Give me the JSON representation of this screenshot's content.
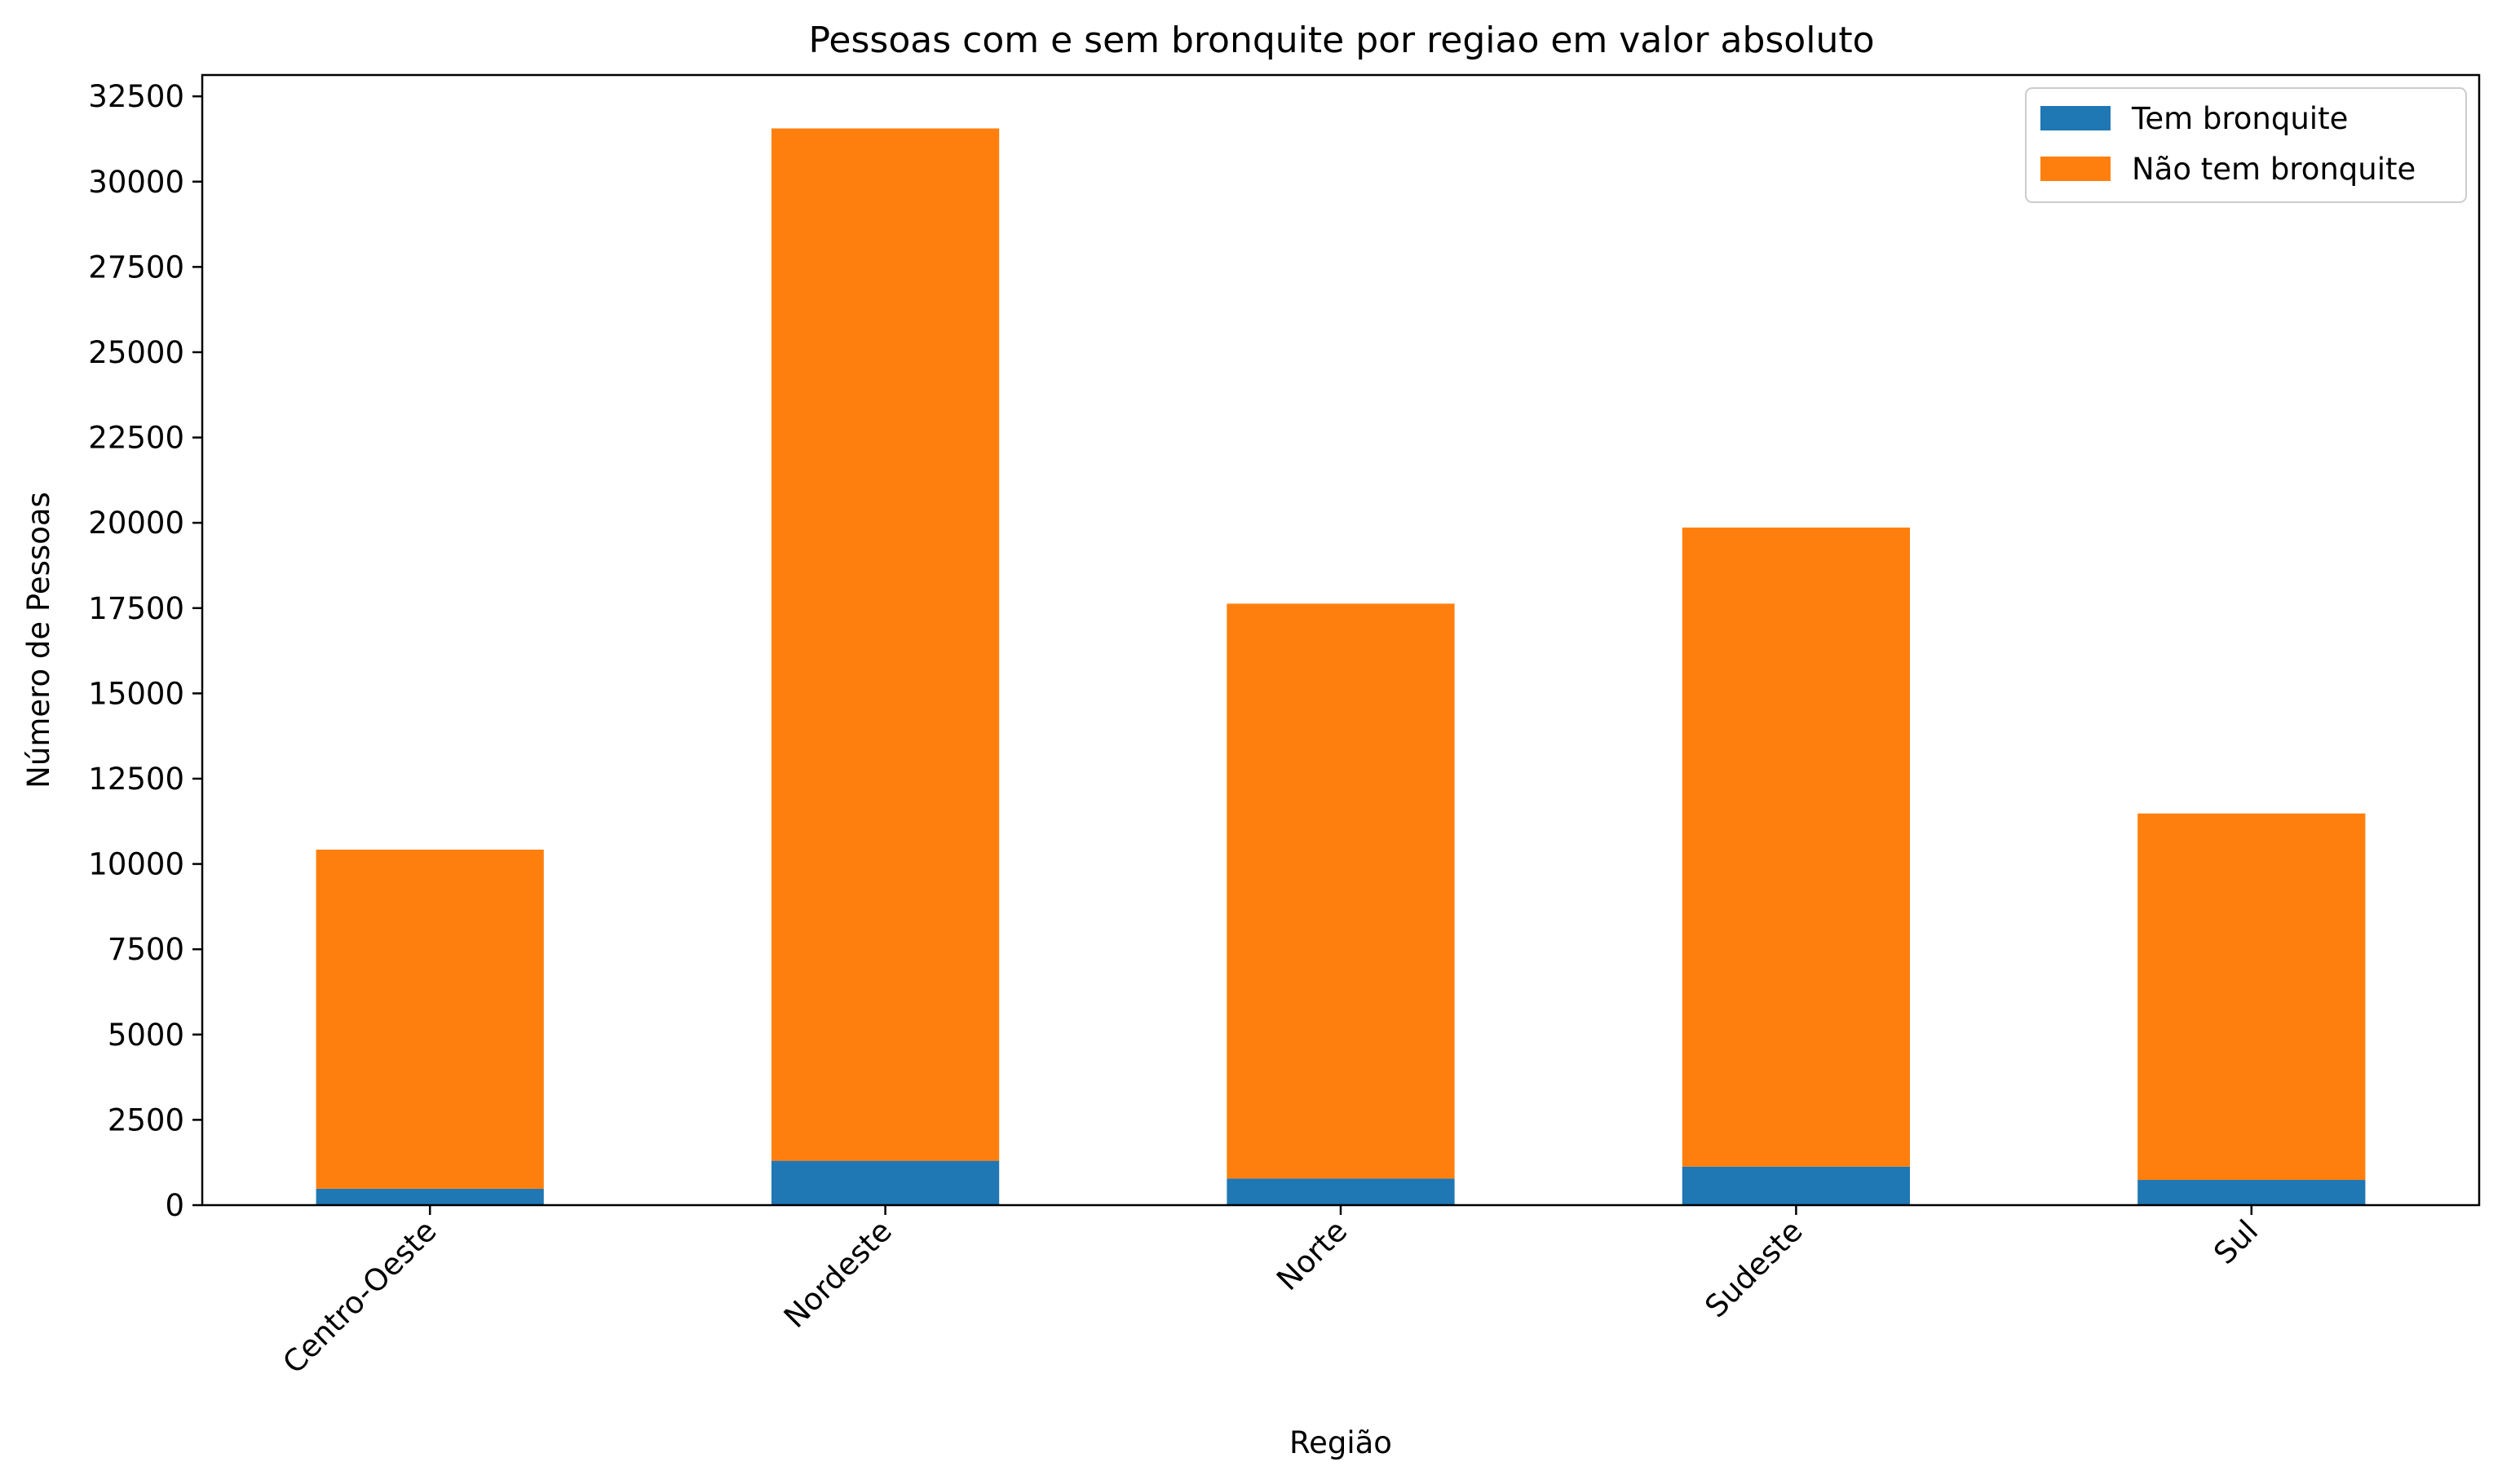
{
  "chart_data": {
    "type": "bar",
    "stacked": true,
    "title": "Pessoas com e sem bronquite por regiao em valor absoluto",
    "xlabel": "Região",
    "ylabel": "Número de Pessoas",
    "categories": [
      "Centro-Oeste",
      "Nordeste",
      "Norte",
      "Sudeste",
      "Sul"
    ],
    "series": [
      {
        "name": "Tem bronquite",
        "color": "#1f77b4",
        "values": [
          480,
          1300,
          780,
          1130,
          740
        ]
      },
      {
        "name": "Não tem bronquite",
        "color": "#ff7f0e",
        "values": [
          9940,
          30260,
          16850,
          18730,
          10740
        ]
      }
    ],
    "ylim": [
      0,
      33125
    ],
    "yticks": [
      0,
      2500,
      5000,
      7500,
      10000,
      12500,
      15000,
      17500,
      20000,
      22500,
      25000,
      27500,
      30000,
      32500
    ],
    "grid": false,
    "legend_position": "top-right"
  }
}
